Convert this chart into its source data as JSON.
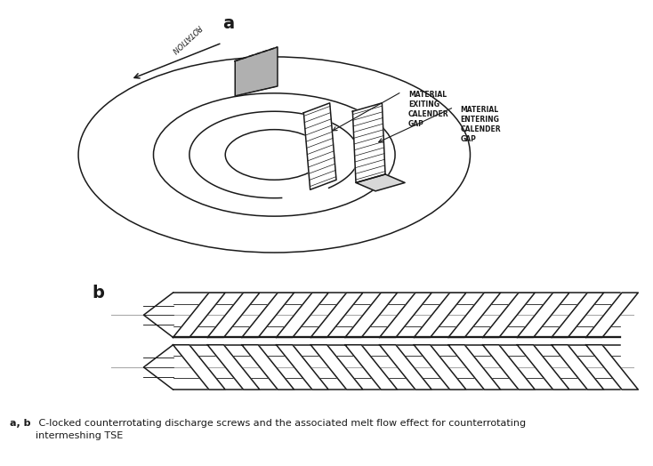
{
  "bg_color": "#ffffff",
  "line_color": "#1a1a1a",
  "gray_fill": "#b0b0b0",
  "light_gray": "#d8d8d8",
  "label_a": "a",
  "label_b": "b",
  "text_material_exiting": "MATERIAL\nEXITING\nCALENDER\nGAP",
  "text_material_entering": "MATERIAL\nENTERING\nCALENDER\nGAP",
  "text_rotation": "ROTATION",
  "caption_bold": "a, b",
  "caption_rest": " C-locked counterrotating discharge screws and the associated melt flow effect for counterrotating\nintermeshing TSE"
}
